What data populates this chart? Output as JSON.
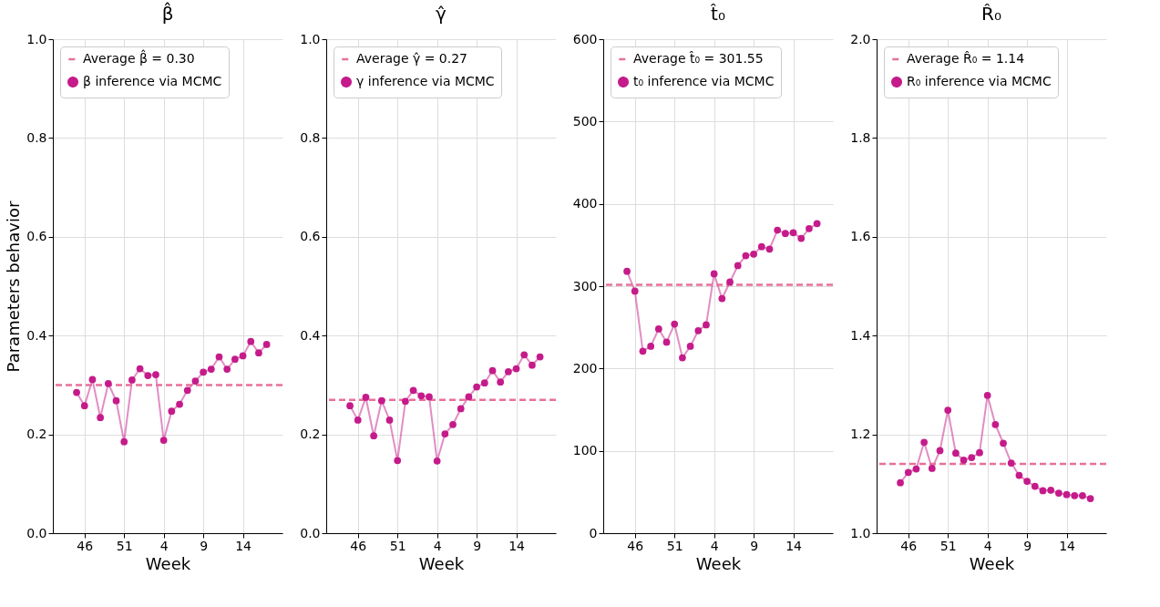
{
  "chart_data": [
    {
      "type": "line",
      "title": "β̂",
      "xlabel": "Week",
      "ylabel": "Parameters behavior",
      "categories": [
        null,
        "46",
        null,
        null,
        null,
        null,
        "51",
        null,
        null,
        null,
        null,
        "4",
        null,
        null,
        null,
        null,
        "9",
        null,
        null,
        null,
        null,
        "14",
        null,
        null,
        null
      ],
      "series": [
        {
          "name": "β inference via MCMC",
          "color": "#c51b8a",
          "values": [
            0.285,
            0.258,
            0.311,
            0.234,
            0.303,
            0.268,
            0.185,
            0.31,
            0.333,
            0.319,
            0.321,
            0.188,
            0.247,
            0.261,
            0.289,
            0.308,
            0.326,
            0.332,
            0.357,
            0.332,
            0.352,
            0.359,
            0.388,
            0.365,
            0.382
          ]
        }
      ],
      "ref_lines": [
        {
          "axis": "y",
          "value": 0.3,
          "label": "Average β̂ = 0.30",
          "color": "#e7709a",
          "line_style": "dashed"
        }
      ],
      "ylim": [
        0,
        1
      ],
      "yticks": [
        {
          "value": 0,
          "label": "0.0"
        },
        0.2,
        0.4,
        0.6,
        0.8,
        {
          "value": 1,
          "label": "1.0"
        }
      ],
      "grid": true,
      "legend": "top",
      "marker": "circle"
    },
    {
      "type": "line",
      "title": "γ̂",
      "xlabel": "Week",
      "categories": [
        null,
        "46",
        null,
        null,
        null,
        null,
        "51",
        null,
        null,
        null,
        null,
        "4",
        null,
        null,
        null,
        null,
        "9",
        null,
        null,
        null,
        null,
        "14",
        null,
        null,
        null
      ],
      "series": [
        {
          "name": "γ inference via MCMC",
          "color": "#c51b8a",
          "values": [
            0.258,
            0.229,
            0.275,
            0.197,
            0.268,
            0.229,
            0.147,
            0.267,
            0.289,
            0.278,
            0.276,
            0.146,
            0.201,
            0.22,
            0.252,
            0.276,
            0.296,
            0.304,
            0.329,
            0.306,
            0.327,
            0.333,
            0.361,
            0.34,
            0.357
          ]
        }
      ],
      "ref_lines": [
        {
          "axis": "y",
          "value": 0.27,
          "label": "Average γ̂ = 0.27",
          "color": "#e7709a",
          "line_style": "dashed"
        }
      ],
      "ylim": [
        0,
        1
      ],
      "yticks": [
        {
          "value": 0,
          "label": "0.0"
        },
        0.2,
        0.4,
        0.6,
        0.8,
        {
          "value": 1,
          "label": "1.0"
        }
      ],
      "grid": true,
      "legend": "top",
      "marker": "circle"
    },
    {
      "type": "line",
      "title": "t̂₀",
      "xlabel": "Week",
      "categories": [
        null,
        "46",
        null,
        null,
        null,
        null,
        "51",
        null,
        null,
        null,
        null,
        "4",
        null,
        null,
        null,
        null,
        "9",
        null,
        null,
        null,
        null,
        "14",
        null,
        null,
        null
      ],
      "series": [
        {
          "name": "t₀ inference via MCMC",
          "color": "#c51b8a",
          "values": [
            318,
            294,
            221,
            227,
            248,
            232,
            254,
            213,
            227,
            246,
            253,
            315,
            285,
            305,
            325,
            337,
            339,
            348,
            345,
            368,
            364,
            365,
            358,
            370,
            376
          ]
        }
      ],
      "ref_lines": [
        {
          "axis": "y",
          "value": 301.55,
          "label": "Average t̂₀ = 301.55",
          "color": "#e7709a",
          "line_style": "dashed"
        }
      ],
      "ylim": [
        0,
        600
      ],
      "yticks": [
        0,
        100,
        200,
        300,
        400,
        500,
        600
      ],
      "grid": true,
      "legend": "top",
      "marker": "circle"
    },
    {
      "type": "line",
      "title": "R̂₀",
      "xlabel": "Week",
      "categories": [
        null,
        "46",
        null,
        null,
        null,
        null,
        "51",
        null,
        null,
        null,
        null,
        "4",
        null,
        null,
        null,
        null,
        "9",
        null,
        null,
        null,
        null,
        "14",
        null,
        null,
        null
      ],
      "series": [
        {
          "name": "R₀ inference via MCMC",
          "color": "#c51b8a",
          "values": [
            1.102,
            1.123,
            1.13,
            1.184,
            1.131,
            1.167,
            1.249,
            1.162,
            1.148,
            1.153,
            1.163,
            1.279,
            1.22,
            1.182,
            1.142,
            1.117,
            1.105,
            1.095,
            1.086,
            1.087,
            1.081,
            1.078,
            1.076,
            1.076,
            1.07
          ]
        }
      ],
      "ref_lines": [
        {
          "axis": "y",
          "value": 1.14,
          "label": "Average R̂₀ = 1.14",
          "color": "#e7709a",
          "line_style": "dashed"
        }
      ],
      "ylim": [
        1,
        2
      ],
      "yticks": [
        {
          "value": 1,
          "label": "1.0"
        },
        1.2,
        1.4,
        1.6,
        1.8,
        {
          "value": 2,
          "label": "2.0"
        }
      ],
      "grid": true,
      "legend": "top",
      "marker": "circle"
    }
  ]
}
